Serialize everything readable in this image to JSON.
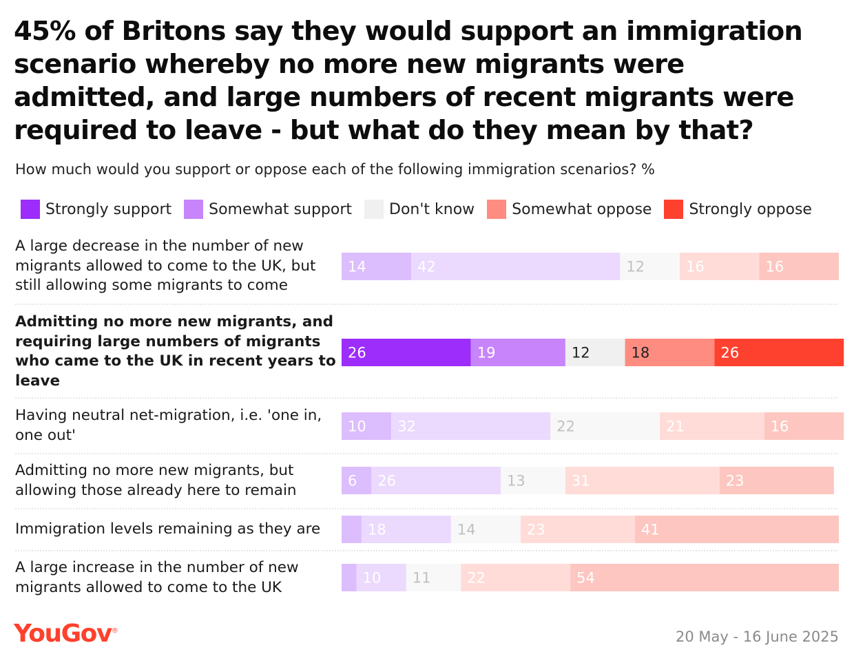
{
  "title": "45% of Britons say they would support an immigration scenario whereby no more new migrants were admitted, and large numbers of recent migrants were required to leave - but what do they mean by that?",
  "subtitle": "How much would you support or oppose each of the following immigration scenarios? %",
  "chart_data": {
    "type": "bar",
    "orientation": "horizontal",
    "stacked": true,
    "unit": "%",
    "xlim": [
      0,
      100
    ],
    "legend_position": "top",
    "series": [
      {
        "name": "Strongly support",
        "color": "#9c2dfa",
        "faded_color": "#dcbdfd",
        "values": [
          14,
          26,
          10,
          6,
          4,
          3
        ]
      },
      {
        "name": "Somewhat support",
        "color": "#c784fb",
        "faded_color": "#ebd9fe",
        "values": [
          42,
          19,
          32,
          26,
          18,
          10
        ]
      },
      {
        "name": "Don't know",
        "color": "#f0f0f0",
        "faded_color": "#f8f8f8",
        "values": [
          12,
          12,
          22,
          13,
          14,
          11
        ]
      },
      {
        "name": "Somewhat oppose",
        "color": "#fe8c80",
        "faded_color": "#ffdcd8",
        "values": [
          16,
          18,
          21,
          31,
          23,
          22
        ]
      },
      {
        "name": "Strongly oppose",
        "color": "#fe412f",
        "faded_color": "#fdc6c0",
        "values": [
          16,
          26,
          16,
          23,
          41,
          54
        ]
      }
    ],
    "value_labels": [
      [
        "14",
        "42",
        "12",
        "16",
        "16"
      ],
      [
        "26",
        "19",
        "12",
        "18",
        "26"
      ],
      [
        "10",
        "32",
        "22",
        "21",
        "16"
      ],
      [
        "6",
        "26",
        "13",
        "31",
        "23"
      ],
      [
        "",
        "18",
        "14",
        "23",
        "41"
      ],
      [
        "",
        "10",
        "11",
        "22",
        "54"
      ]
    ],
    "categories": [
      {
        "lines": [
          "A large decrease in the number of new",
          "migrants allowed to come to the UK, but",
          "still allowing some migrants to come"
        ],
        "highlight": false
      },
      {
        "lines": [
          "Admitting no more new migrants, and",
          "requiring large numbers of migrants",
          "who came to the UK in recent years to",
          "leave"
        ],
        "highlight": true
      },
      {
        "lines": [
          "Having neutral net-migration, i.e. 'one in,",
          "one out'"
        ],
        "highlight": false
      },
      {
        "lines": [
          "Admitting no more new migrants, but",
          "allowing those already here to remain"
        ],
        "highlight": false
      },
      {
        "lines": [
          "Immigration levels remaining as they are"
        ],
        "highlight": false
      },
      {
        "lines": [
          "A large increase in the number of new",
          "migrants allowed to come to the UK"
        ],
        "highlight": false
      }
    ]
  },
  "footer": {
    "logo": "YouGov",
    "logo_mark": "®",
    "date": "20 May - 16 June 2025"
  }
}
